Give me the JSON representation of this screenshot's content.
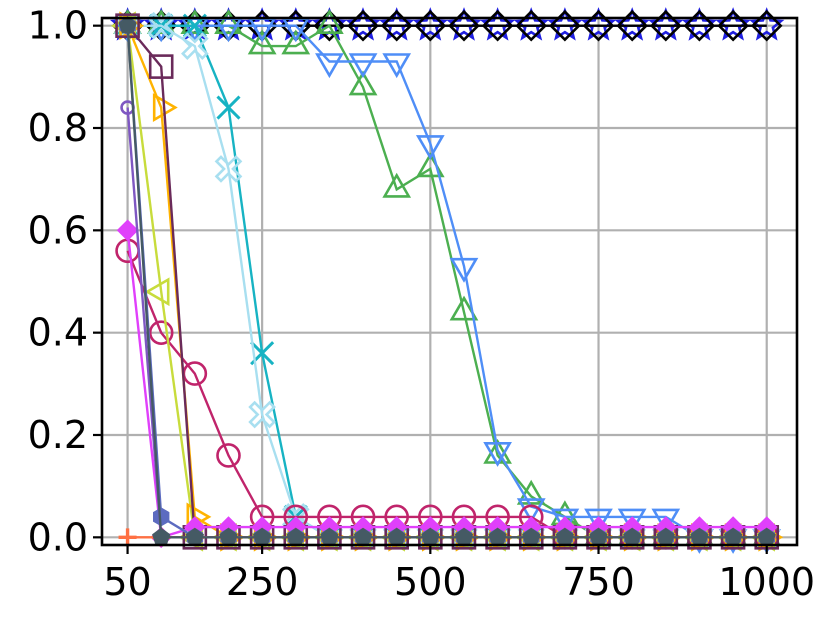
{
  "chart_data": {
    "type": "line",
    "title": "",
    "xlabel": "",
    "ylabel": "",
    "xlim": [
      12,
      1045
    ],
    "ylim": [
      -0.015,
      1.015
    ],
    "grid": true,
    "x_ticks": [
      {
        "value": 50,
        "label": "50"
      },
      {
        "value": 250,
        "label": "250"
      },
      {
        "value": 500,
        "label": "500"
      },
      {
        "value": 750,
        "label": "750"
      },
      {
        "value": 1000,
        "label": "1000"
      }
    ],
    "y_ticks": [
      {
        "value": 0.0,
        "label": "0.0"
      },
      {
        "value": 0.2,
        "label": "0.2"
      },
      {
        "value": 0.4,
        "label": "0.4"
      },
      {
        "value": 0.6,
        "label": "0.6"
      },
      {
        "value": 0.8,
        "label": "0.8"
      },
      {
        "value": 1.0,
        "label": "1.0"
      }
    ],
    "x": [
      50,
      100,
      150,
      200,
      250,
      300,
      350,
      400,
      450,
      500,
      550,
      600,
      650,
      700,
      750,
      800,
      850,
      900,
      950,
      1000
    ],
    "series": [
      {
        "marker": "star",
        "color": "#1f1fe0",
        "values": [
          1,
          1,
          1,
          1,
          1,
          1,
          1,
          1,
          1,
          1,
          1,
          1,
          1,
          1,
          1,
          1,
          1,
          1,
          1,
          1
        ]
      },
      {
        "marker": "diamond",
        "color": "#000000",
        "values": [
          1,
          1,
          1,
          1,
          1,
          1,
          1,
          1,
          1,
          1,
          1,
          1,
          1,
          1,
          1,
          1,
          1,
          1,
          1,
          1
        ]
      },
      {
        "marker": "triangle-up",
        "color": "#4caf50",
        "values": [
          1,
          1,
          1,
          1,
          0.96,
          0.96,
          1,
          0.88,
          0.68,
          0.72,
          0.44,
          0.16,
          0.08,
          0.04,
          0,
          0,
          0,
          0,
          0,
          0
        ]
      },
      {
        "marker": "triangle-down",
        "color": "#4f8ef7",
        "values": [
          1,
          1,
          1,
          1,
          1,
          1,
          0.93,
          0.93,
          0.93,
          0.77,
          0.53,
          0.17,
          0.06,
          0.04,
          0.04,
          0.04,
          0.04,
          0,
          0,
          0
        ]
      },
      {
        "marker": "x",
        "color": "#17b3c3",
        "values": [
          1,
          1,
          1,
          0.84,
          0.36,
          0.04,
          0,
          0,
          0,
          0,
          0,
          0,
          0,
          0,
          0,
          0,
          0,
          0,
          0,
          0
        ]
      },
      {
        "marker": "x-filled",
        "color": "#a8dff0",
        "values": [
          1,
          1,
          0.96,
          0.72,
          0.24,
          0.04,
          0,
          0,
          0,
          0,
          0,
          0,
          0,
          0,
          0,
          0,
          0,
          0,
          0,
          0
        ]
      },
      {
        "marker": "circle",
        "color": "#c0246b",
        "values": [
          0.56,
          0.4,
          0.32,
          0.16,
          0.04,
          0.04,
          0.04,
          0.04,
          0.04,
          0.04,
          0.04,
          0.04,
          0.04,
          0,
          0,
          0,
          0,
          0,
          0,
          0
        ]
      },
      {
        "marker": "triangle-left",
        "color": "#c8dc3c",
        "values": [
          1,
          0.48,
          0,
          0,
          0,
          0,
          0,
          0,
          0,
          0,
          0,
          0,
          0,
          0,
          0,
          0,
          0,
          0,
          0,
          0
        ]
      },
      {
        "marker": "triangle-right",
        "color": "#ffb300",
        "values": [
          1,
          0.84,
          0.04,
          0,
          0,
          0,
          0,
          0,
          0,
          0,
          0,
          0,
          0,
          0,
          0,
          0,
          0,
          0,
          0,
          0
        ]
      },
      {
        "marker": "square",
        "color": "#6a2a5a",
        "values": [
          1,
          0.92,
          0,
          0,
          0,
          0,
          0,
          0,
          0,
          0,
          0,
          0,
          0,
          0,
          0,
          0,
          0,
          0,
          0,
          0
        ]
      },
      {
        "marker": "diamond-small",
        "color": "#e040fb",
        "values": [
          0.6,
          0,
          0.02,
          0.02,
          0.02,
          0.02,
          0.02,
          0.02,
          0.02,
          0.02,
          0.02,
          0.02,
          0.02,
          0.02,
          0.02,
          0.02,
          0.02,
          0.02,
          0.02,
          0.02
        ]
      },
      {
        "marker": "hexagon",
        "color": "#5c6bc0",
        "values": [
          1,
          0.04,
          0,
          0,
          0,
          0,
          0,
          0,
          0,
          0,
          0,
          0,
          0,
          0,
          0,
          0,
          0,
          0,
          0,
          0
        ]
      },
      {
        "marker": "circle-small",
        "color": "#7e57c2",
        "values": [
          0.84,
          0,
          0,
          0,
          0,
          0,
          0,
          0,
          0,
          0,
          0,
          0,
          0,
          0,
          0,
          0,
          0,
          0,
          0,
          0
        ]
      },
      {
        "marker": "plus",
        "color": "#ff7043",
        "values": [
          0,
          0,
          0,
          0,
          0,
          0,
          0,
          0,
          0,
          0,
          0,
          0,
          0,
          0,
          0,
          0,
          0,
          0,
          0,
          0
        ]
      },
      {
        "marker": "pentagon",
        "color": "#455a64",
        "values": [
          1,
          0,
          0,
          0,
          0,
          0,
          0,
          0,
          0,
          0,
          0,
          0,
          0,
          0,
          0,
          0,
          0,
          0,
          0,
          0
        ]
      }
    ]
  }
}
